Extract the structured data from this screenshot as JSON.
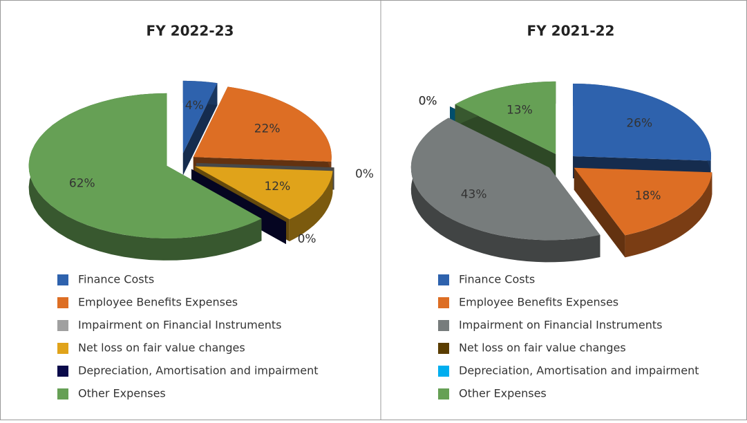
{
  "chart_data": [
    {
      "type": "pie",
      "title": "FY 2022-23",
      "categories": [
        "Finance Costs",
        "Employee Benefits Expenses",
        "Impairment on Financial Instruments",
        "Net loss on fair value changes",
        "Depreciation, Amortisation and impairment",
        "Other Expenses"
      ],
      "values": [
        4,
        22,
        0,
        12,
        0,
        62
      ],
      "value_labels": [
        "4%",
        "22%",
        "0%",
        "12%",
        "0%",
        "62%"
      ],
      "colors": [
        "#2e62ad",
        "#dd6e24",
        "#a0a0a0",
        "#e0a31a",
        "#0a0a4a",
        "#66a055"
      ]
    },
    {
      "type": "pie",
      "title": "FY 2021-22",
      "categories": [
        "Finance Costs",
        "Employee Benefits Expenses",
        "Impairment on Financial Instruments",
        "Net loss on fair value changes",
        "Depreciation, Amortisation and impairment",
        "Other Expenses"
      ],
      "values": [
        26,
        18,
        43,
        0,
        0,
        13
      ],
      "value_labels": [
        "26%",
        "18%",
        "43%",
        "0%",
        "0%",
        "13%"
      ],
      "colors": [
        "#2e62ad",
        "#dd6e24",
        "#777c7c",
        "#5a3d00",
        "#00aeef",
        "#66a055"
      ]
    }
  ]
}
